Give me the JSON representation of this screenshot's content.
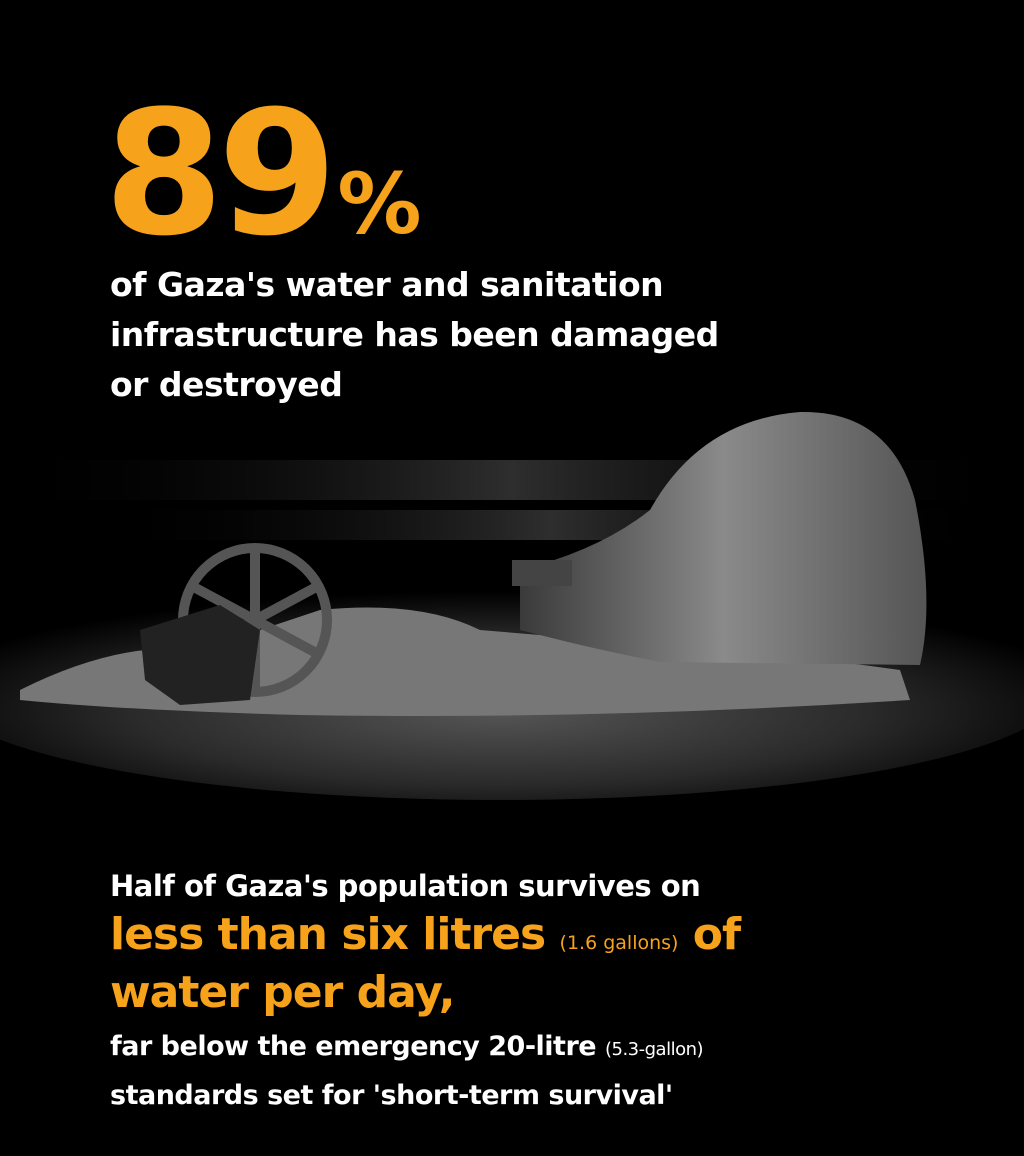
{
  "headline": {
    "value": "89",
    "unit": "%",
    "color": "#F7A21B"
  },
  "lead": {
    "lines": [
      "of Gaza's water and sanitation",
      "infrastructure has been damaged",
      "or destroyed"
    ]
  },
  "illustration": {
    "icon": "destroyed-water-pipe-and-valve-wheel-illustration"
  },
  "bottom": {
    "intro": "Half of Gaza's population survives on",
    "highlight_1": "less than six litres",
    "highlight_1_note": "(1.6 gallons)",
    "highlight_1_end": "of",
    "highlight_2": "water per day,",
    "body_1": "far below the emergency 20-litre",
    "body_1_note": "(5.3-gallon)",
    "body_2": "standards set for 'short-term survival'"
  }
}
